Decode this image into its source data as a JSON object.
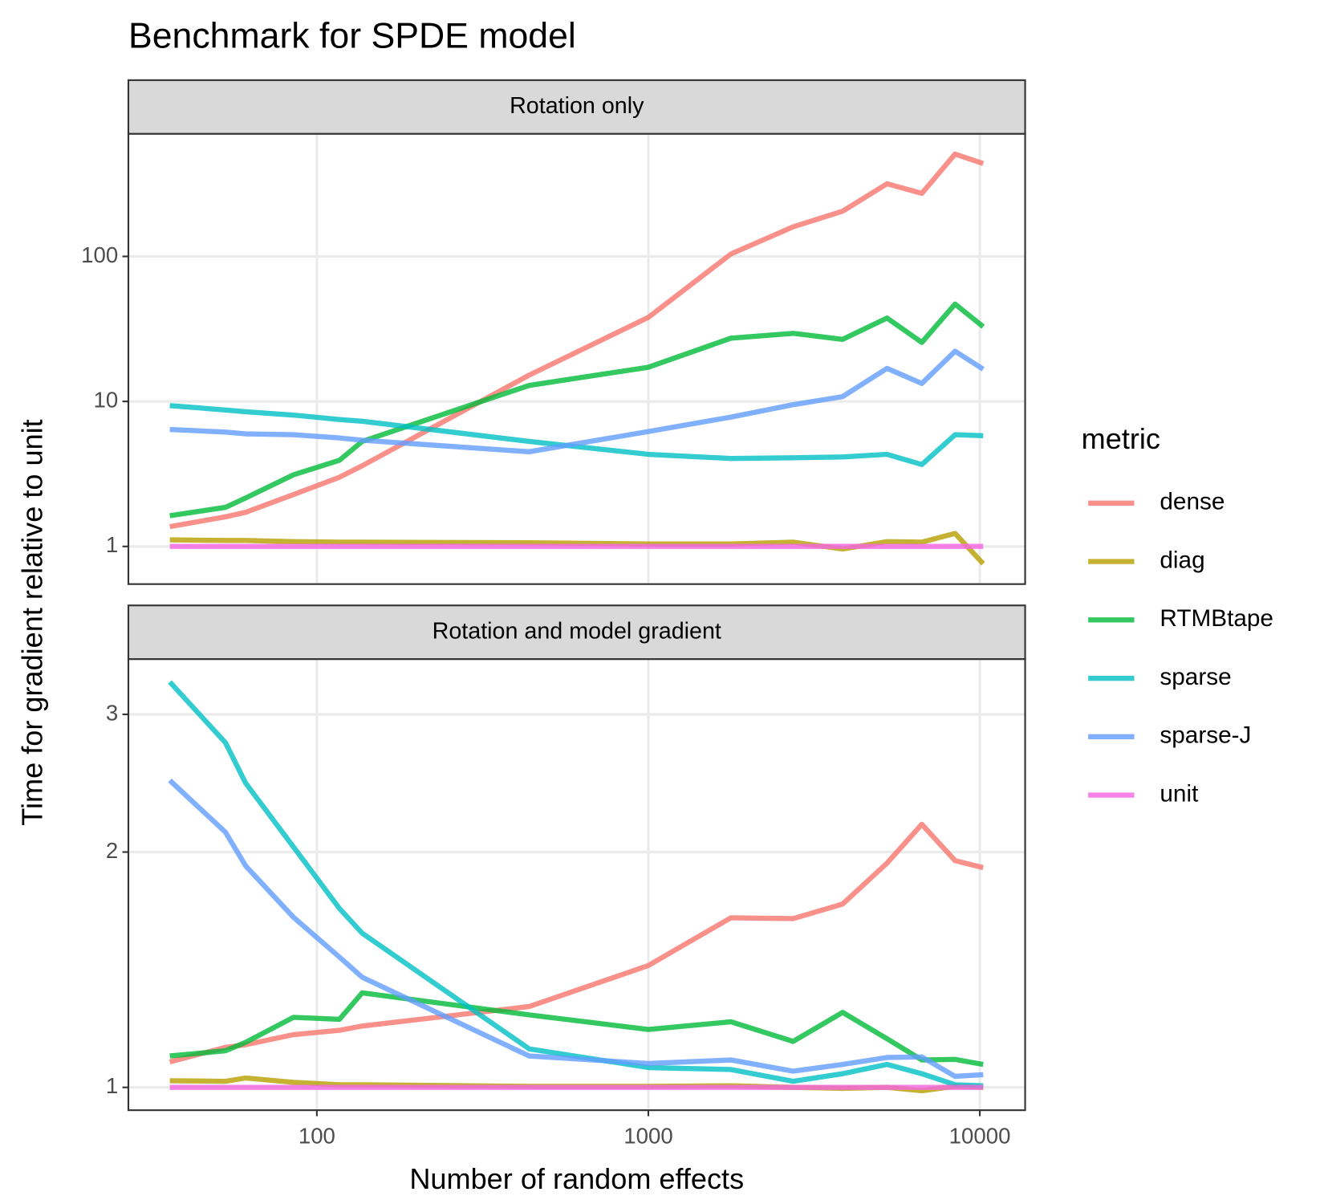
{
  "chart_data": [
    {
      "type": "line",
      "title": "Benchmark for SPDE model",
      "panel_title": "Rotation only",
      "y_label": "Time for gradient relative to unit",
      "legend_title": "metric",
      "log_x": true,
      "log_y": true,
      "grid": true,
      "x": [
        36,
        53,
        61,
        85,
        117,
        137,
        437,
        1000,
        1775,
        2735,
        3855,
        5248,
        6683,
        8420,
        10240
      ],
      "xlim": [
        27,
        13700
      ],
      "xticks": [
        100,
        1000,
        10000
      ],
      "ylim": [
        0.55,
        700
      ],
      "yticks": [
        1,
        10,
        100
      ],
      "series": [
        {
          "name": "dense",
          "color": "#F8766D",
          "values": [
            1.37,
            1.6,
            1.72,
            2.28,
            3.0,
            3.6,
            15.2,
            38,
            104,
            160,
            205,
            317,
            272,
            508,
            437
          ]
        },
        {
          "name": "diag",
          "color": "#B79F00",
          "values": [
            1.11,
            1.1,
            1.1,
            1.08,
            1.07,
            1.07,
            1.06,
            1.04,
            1.04,
            1.07,
            0.96,
            1.08,
            1.07,
            1.23,
            0.76
          ]
        },
        {
          "name": "RTMBtape",
          "color": "#00BA38",
          "values": [
            1.63,
            1.86,
            2.16,
            3.12,
            3.93,
            5.3,
            12.9,
            17.2,
            27.3,
            29.5,
            26.8,
            37.6,
            25.5,
            46.9,
            32.8
          ]
        },
        {
          "name": "sparse",
          "color": "#00BFC4",
          "values": [
            9.35,
            8.73,
            8.5,
            8.05,
            7.5,
            7.3,
            5.3,
            4.32,
            4.04,
            4.09,
            4.14,
            4.32,
            3.67,
            5.9,
            5.8
          ]
        },
        {
          "name": "sparse-J",
          "color": "#619CFF",
          "values": [
            6.4,
            6.15,
            5.98,
            5.9,
            5.6,
            5.4,
            4.5,
            6.2,
            7.8,
            9.5,
            10.8,
            16.9,
            13.3,
            22.2,
            16.7
          ]
        },
        {
          "name": "unit",
          "color": "#F564E3",
          "values": [
            1,
            1,
            1,
            1,
            1,
            1,
            1,
            1,
            1,
            1,
            1,
            1,
            1,
            1,
            1
          ]
        }
      ]
    },
    {
      "type": "line",
      "panel_title": "Rotation and model gradient",
      "x_label": "Number of random effects",
      "log_x": true,
      "log_y": true,
      "grid": true,
      "x": [
        36,
        53,
        61,
        85,
        117,
        137,
        437,
        1000,
        1775,
        2735,
        3855,
        5248,
        6683,
        8420,
        10240
      ],
      "xlim": [
        27,
        13700
      ],
      "xticks": [
        100,
        1000,
        10000
      ],
      "ylim": [
        0.935,
        3.53
      ],
      "yticks": [
        1,
        2,
        3
      ],
      "series": [
        {
          "name": "dense",
          "color": "#F8766D",
          "values": [
            1.078,
            1.125,
            1.134,
            1.168,
            1.183,
            1.198,
            1.269,
            1.432,
            1.648,
            1.644,
            1.716,
            1.936,
            2.17,
            1.95,
            1.91
          ]
        },
        {
          "name": "diag",
          "color": "#B79F00",
          "values": [
            1.02,
            1.018,
            1.028,
            1.015,
            1.008,
            1.008,
            1.003,
            1.003,
            1.005,
            1,
            0.997,
            1,
            0.99,
            1.003,
            1
          ]
        },
        {
          "name": "RTMBtape",
          "color": "#00BA38",
          "values": [
            1.097,
            1.114,
            1.142,
            1.229,
            1.222,
            1.321,
            1.238,
            1.186,
            1.213,
            1.145,
            1.247,
            1.154,
            1.084,
            1.086,
            1.07
          ]
        },
        {
          "name": "sparse",
          "color": "#00BFC4",
          "values": [
            3.3,
            2.76,
            2.45,
            2.03,
            1.694,
            1.575,
            1.12,
            1.06,
            1.054,
            1.018,
            1.041,
            1.07,
            1.041,
            1.008,
            1.005
          ]
        },
        {
          "name": "sparse-J",
          "color": "#619CFF",
          "values": [
            2.47,
            2.12,
            1.92,
            1.65,
            1.468,
            1.383,
            1.097,
            1.073,
            1.084,
            1.049,
            1.07,
            1.092,
            1.094,
            1.033,
            1.038
          ]
        },
        {
          "name": "unit",
          "color": "#F564E3",
          "values": [
            1,
            1,
            1,
            1,
            1,
            1,
            1,
            1,
            1,
            1,
            1,
            1,
            1,
            1,
            1
          ]
        }
      ]
    }
  ]
}
